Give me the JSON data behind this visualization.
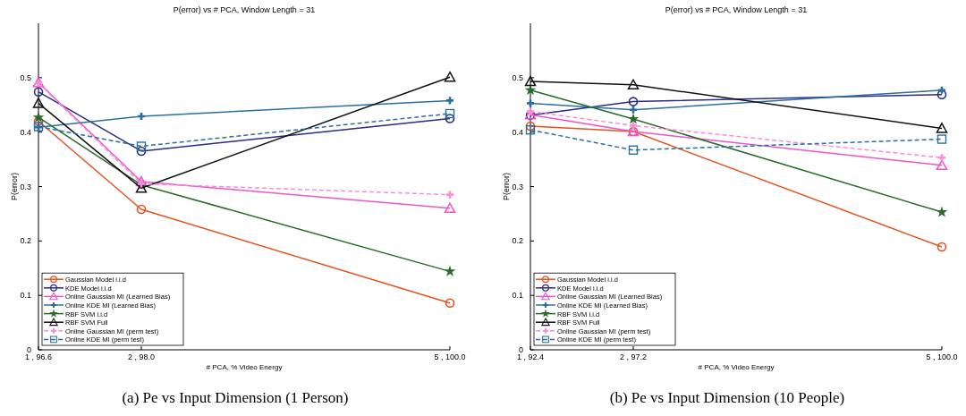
{
  "chart_data": [
    {
      "type": "line",
      "title": "P(error) vs # PCA,  Window Length = 31",
      "xlabel": "# PCA, % Video Energy",
      "ylabel": "P(error)",
      "annotations": [
        "(a) Pe vs Input Dimension (1 Person)"
      ],
      "categories": [
        "1 , 96.6",
        "2 , 98.0",
        null,
        null,
        "5 , 100.0"
      ],
      "ylim": [
        0,
        0.6
      ],
      "yticks": [
        0,
        0.1,
        0.2,
        0.3,
        0.4,
        0.5
      ],
      "legend": "bottom left",
      "series": [
        {
          "name": "Gaussian Model i.i.d",
          "color": "#e8501e",
          "marker": "circle",
          "line_style": "solid",
          "values": [
            0.42,
            0.258,
            null,
            null,
            0.086
          ]
        },
        {
          "name": "KDE Model i.i.d",
          "color": "#2a2a8a",
          "marker": "circle",
          "line_style": "solid",
          "values": [
            0.474,
            0.365,
            null,
            null,
            0.425
          ]
        },
        {
          "name": "Online Gaussian MI (Learned Bias)",
          "color": "#ee55cc",
          "marker": "triangle",
          "line_style": "solid",
          "values": [
            0.491,
            0.309,
            null,
            null,
            0.26
          ]
        },
        {
          "name": "Online KDE MI (Learned Bias)",
          "color": "#2a6fa0",
          "marker": "cross",
          "line_style": "solid",
          "values": [
            0.409,
            0.429,
            null,
            null,
            0.458
          ]
        },
        {
          "name": "RBF SVM i.i.d",
          "color": "#2a6a2a",
          "marker": "star",
          "line_style": "solid",
          "values": [
            0.427,
            0.303,
            null,
            null,
            0.144
          ]
        },
        {
          "name": "RBF SVM Full",
          "color": "#111111",
          "marker": "triangle",
          "line_style": "solid",
          "values": [
            0.453,
            0.297,
            null,
            null,
            0.501
          ]
        },
        {
          "name": "Online Gaussian MI (perm test)",
          "color": "#ff8ad8",
          "marker": "cross",
          "line_style": "dashed",
          "values": [
            0.49,
            0.305,
            null,
            null,
            0.285
          ]
        },
        {
          "name": "Online KDE MI (perm test)",
          "color": "#2a70a0",
          "marker": "square",
          "line_style": "dashed",
          "values": [
            0.41,
            0.374,
            null,
            null,
            0.434
          ]
        }
      ]
    },
    {
      "type": "line",
      "title": "P(error) vs # PCA,  Window Length = 31",
      "xlabel": "# PCA, % Video Energy",
      "ylabel": "P(error)",
      "annotations": [
        "(b) Pe vs Input Dimension (10 People)"
      ],
      "categories": [
        "1 , 92.4",
        "2 , 97.2",
        null,
        null,
        "5 , 100.0"
      ],
      "ylim": [
        0,
        0.6
      ],
      "yticks": [
        0,
        0.1,
        0.2,
        0.3,
        0.4,
        0.5
      ],
      "legend": "bottom left",
      "series": [
        {
          "name": "Gaussian Model i.i.d",
          "color": "#e8501e",
          "marker": "circle",
          "line_style": "solid",
          "values": [
            0.411,
            0.401,
            null,
            null,
            0.189
          ]
        },
        {
          "name": "KDE Model i.i.d",
          "color": "#2a2a8a",
          "marker": "circle",
          "line_style": "solid",
          "values": [
            0.431,
            0.456,
            null,
            null,
            0.469
          ]
        },
        {
          "name": "Online Gaussian MI (Learned Bias)",
          "color": "#ee55cc",
          "marker": "triangle",
          "line_style": "solid",
          "values": [
            0.432,
            0.401,
            null,
            null,
            0.339
          ]
        },
        {
          "name": "Online KDE MI (Learned Bias)",
          "color": "#2a6fa0",
          "marker": "cross",
          "line_style": "solid",
          "values": [
            0.453,
            0.441,
            null,
            null,
            0.477
          ]
        },
        {
          "name": "RBF SVM i.i.d",
          "color": "#2a6a2a",
          "marker": "star",
          "line_style": "solid",
          "values": [
            0.477,
            0.424,
            null,
            null,
            0.253
          ]
        },
        {
          "name": "RBF SVM Full",
          "color": "#111111",
          "marker": "triangle",
          "line_style": "solid",
          "values": [
            0.493,
            0.487,
            null,
            null,
            0.407
          ]
        },
        {
          "name": "Online Gaussian MI (perm test)",
          "color": "#ff8ad8",
          "marker": "cross",
          "line_style": "dashed",
          "values": [
            0.438,
            0.412,
            null,
            null,
            0.353
          ]
        },
        {
          "name": "Online KDE MI (perm test)",
          "color": "#2a70a0",
          "marker": "square",
          "line_style": "dashed",
          "values": [
            0.404,
            0.367,
            null,
            null,
            0.387
          ]
        }
      ]
    }
  ]
}
